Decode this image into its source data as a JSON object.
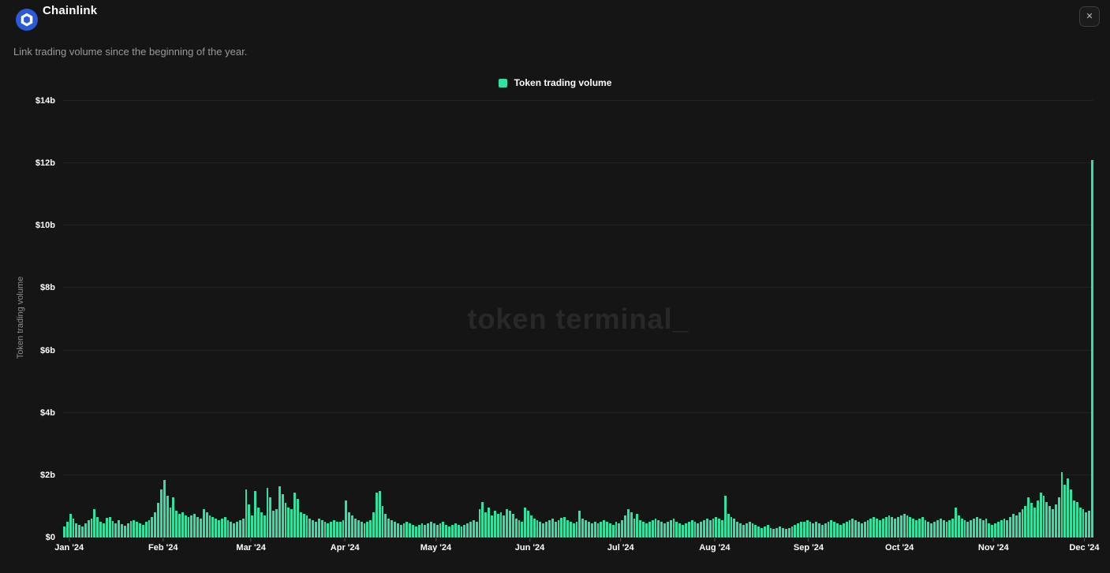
{
  "header": {
    "title": "Chainlink",
    "subtitle": "Link trading volume since the beginning of the year.",
    "close_label": "✕"
  },
  "watermark": "token terminal_",
  "colors": {
    "background": "#151515",
    "bar_green": "#2DE2A2",
    "logo_blue": "#2a5ada",
    "gridline": "#222222",
    "muted_text": "#9a9a9a",
    "watermark_text": "#282828"
  },
  "chart_data": {
    "type": "bar",
    "title": "Link trading volume since the beginning of the year.",
    "ylabel": "Token trading volume",
    "legend_position": "top-center",
    "grid": true,
    "ylim": [
      0,
      14
    ],
    "unit": "$ billions",
    "y_ticks": [
      {
        "value": 0,
        "label": "$0"
      },
      {
        "value": 2,
        "label": "$2b"
      },
      {
        "value": 4,
        "label": "$4b"
      },
      {
        "value": 6,
        "label": "$6b"
      },
      {
        "value": 8,
        "label": "$8b"
      },
      {
        "value": 10,
        "label": "$10b"
      },
      {
        "value": 12,
        "label": "$12b"
      },
      {
        "value": 14,
        "label": "$14b"
      }
    ],
    "months": [
      {
        "label": "Jan '24",
        "days": 31
      },
      {
        "label": "Feb '24",
        "days": 29
      },
      {
        "label": "Mar '24",
        "days": 31
      },
      {
        "label": "Apr '24",
        "days": 30
      },
      {
        "label": "May '24",
        "days": 31
      },
      {
        "label": "Jun '24",
        "days": 30
      },
      {
        "label": "Jul '24",
        "days": 31
      },
      {
        "label": "Aug '24",
        "days": 31
      },
      {
        "label": "Sep '24",
        "days": 30
      },
      {
        "label": "Oct '24",
        "days": 31
      },
      {
        "label": "Nov '24",
        "days": 30
      },
      {
        "label": "Dec '24",
        "days": 5
      }
    ],
    "series": [
      {
        "name": "Token trading volume",
        "color": "#2DE2A2",
        "values": [
          0.35,
          0.5,
          0.75,
          0.6,
          0.45,
          0.4,
          0.35,
          0.45,
          0.55,
          0.6,
          0.9,
          0.65,
          0.5,
          0.45,
          0.62,
          0.66,
          0.52,
          0.45,
          0.56,
          0.42,
          0.38,
          0.45,
          0.52,
          0.56,
          0.5,
          0.46,
          0.4,
          0.5,
          0.56,
          0.66,
          0.8,
          1.1,
          1.55,
          1.85,
          1.35,
          0.95,
          1.3,
          0.85,
          0.75,
          0.8,
          0.7,
          0.65,
          0.7,
          0.75,
          0.65,
          0.6,
          0.9,
          0.8,
          0.7,
          0.65,
          0.6,
          0.55,
          0.6,
          0.65,
          0.55,
          0.5,
          0.45,
          0.5,
          0.55,
          0.6,
          1.55,
          1.05,
          0.7,
          1.5,
          0.95,
          0.8,
          0.7,
          1.6,
          1.3,
          0.85,
          0.9,
          1.65,
          1.4,
          1.1,
          0.95,
          0.9,
          1.45,
          1.25,
          0.8,
          0.75,
          0.72,
          0.6,
          0.56,
          0.5,
          0.6,
          0.55,
          0.5,
          0.45,
          0.5,
          0.55,
          0.5,
          0.5,
          0.55,
          1.2,
          0.8,
          0.7,
          0.6,
          0.55,
          0.5,
          0.45,
          0.5,
          0.55,
          0.8,
          1.45,
          1.5,
          1.0,
          0.75,
          0.6,
          0.55,
          0.5,
          0.45,
          0.4,
          0.45,
          0.5,
          0.45,
          0.4,
          0.35,
          0.4,
          0.45,
          0.4,
          0.45,
          0.5,
          0.45,
          0.4,
          0.45,
          0.5,
          0.4,
          0.35,
          0.4,
          0.45,
          0.4,
          0.35,
          0.4,
          0.45,
          0.5,
          0.55,
          0.5,
          0.9,
          1.15,
          0.8,
          0.95,
          0.7,
          0.85,
          0.75,
          0.8,
          0.7,
          0.9,
          0.85,
          0.75,
          0.6,
          0.55,
          0.5,
          0.95,
          0.85,
          0.7,
          0.6,
          0.55,
          0.5,
          0.45,
          0.5,
          0.55,
          0.6,
          0.5,
          0.55,
          0.62,
          0.66,
          0.55,
          0.5,
          0.45,
          0.5,
          0.85,
          0.6,
          0.55,
          0.5,
          0.45,
          0.5,
          0.45,
          0.5,
          0.55,
          0.5,
          0.45,
          0.4,
          0.5,
          0.45,
          0.55,
          0.7,
          0.9,
          0.8,
          0.6,
          0.75,
          0.55,
          0.5,
          0.45,
          0.5,
          0.55,
          0.6,
          0.55,
          0.5,
          0.45,
          0.5,
          0.55,
          0.6,
          0.5,
          0.45,
          0.4,
          0.45,
          0.5,
          0.55,
          0.5,
          0.45,
          0.5,
          0.55,
          0.6,
          0.55,
          0.6,
          0.65,
          0.6,
          0.55,
          1.35,
          0.75,
          0.65,
          0.6,
          0.5,
          0.45,
          0.4,
          0.45,
          0.5,
          0.45,
          0.4,
          0.35,
          0.3,
          0.35,
          0.4,
          0.3,
          0.28,
          0.3,
          0.35,
          0.3,
          0.28,
          0.3,
          0.35,
          0.4,
          0.45,
          0.5,
          0.5,
          0.55,
          0.5,
          0.45,
          0.5,
          0.45,
          0.4,
          0.45,
          0.5,
          0.55,
          0.5,
          0.45,
          0.4,
          0.45,
          0.5,
          0.55,
          0.6,
          0.55,
          0.5,
          0.45,
          0.5,
          0.55,
          0.6,
          0.65,
          0.6,
          0.55,
          0.6,
          0.65,
          0.7,
          0.65,
          0.6,
          0.65,
          0.7,
          0.75,
          0.7,
          0.65,
          0.6,
          0.55,
          0.6,
          0.65,
          0.55,
          0.5,
          0.45,
          0.5,
          0.55,
          0.6,
          0.55,
          0.5,
          0.55,
          0.6,
          0.95,
          0.7,
          0.6,
          0.55,
          0.5,
          0.55,
          0.6,
          0.65,
          0.6,
          0.55,
          0.6,
          0.45,
          0.4,
          0.45,
          0.5,
          0.55,
          0.6,
          0.55,
          0.65,
          0.75,
          0.7,
          0.8,
          0.9,
          1.0,
          1.3,
          1.1,
          0.95,
          1.2,
          1.45,
          1.35,
          1.15,
          1.0,
          0.9,
          1.05,
          1.3,
          2.1,
          1.7,
          1.9,
          1.55,
          1.2,
          1.15,
          0.95,
          0.9,
          0.8,
          0.85,
          12.1
        ]
      }
    ]
  }
}
